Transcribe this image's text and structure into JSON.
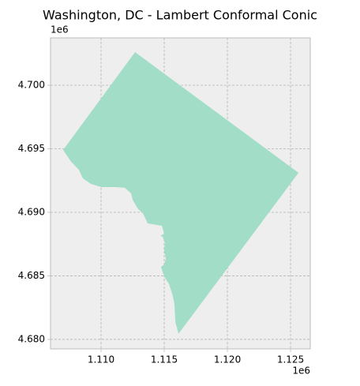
{
  "chart_data": {
    "type": "polygon",
    "title": "Washington, DC - Lambert Conformal Conic",
    "color": "#a2ddc8",
    "grid": true,
    "x_offset_label": "1e6",
    "y_offset_label": "1e6",
    "xlim": [
      1106000,
      1126560
    ],
    "ylim": [
      4679250,
      4703730
    ],
    "xticks": [
      {
        "value": 1110000,
        "label": "1.110"
      },
      {
        "value": 1115000,
        "label": "1.115"
      },
      {
        "value": 1120000,
        "label": "1.120"
      },
      {
        "value": 1125000,
        "label": "1.125"
      }
    ],
    "yticks": [
      {
        "value": 4680000,
        "label": "4.680"
      },
      {
        "value": 4685000,
        "label": "4.685"
      },
      {
        "value": 4690000,
        "label": "4.690"
      },
      {
        "value": 4695000,
        "label": "4.695"
      },
      {
        "value": 4700000,
        "label": "4.700"
      }
    ],
    "x": [
      1112690,
      1125630,
      1116130,
      1115880,
      1115810,
      1115630,
      1115380,
      1115060,
      1114880,
      1114750,
      1115000,
      1115130,
      1115000,
      1115060,
      1114880,
      1114690,
      1115000,
      1114810,
      1113690,
      1113310,
      1112940,
      1112750,
      1112500,
      1112380,
      1111880,
      1111130,
      1110000,
      1109190,
      1108560,
      1108250,
      1107630,
      1107000
    ],
    "y": [
      4702610,
      4693110,
      4680440,
      4681370,
      4682800,
      4683600,
      4684350,
      4684850,
      4685280,
      4685710,
      4685900,
      4686340,
      4686960,
      4687580,
      4688080,
      4688140,
      4688320,
      4688940,
      4689130,
      4689940,
      4690250,
      4690560,
      4690990,
      4691490,
      4691930,
      4691990,
      4691990,
      4692240,
      4692670,
      4693350,
      4693980,
      4694910
    ]
  }
}
